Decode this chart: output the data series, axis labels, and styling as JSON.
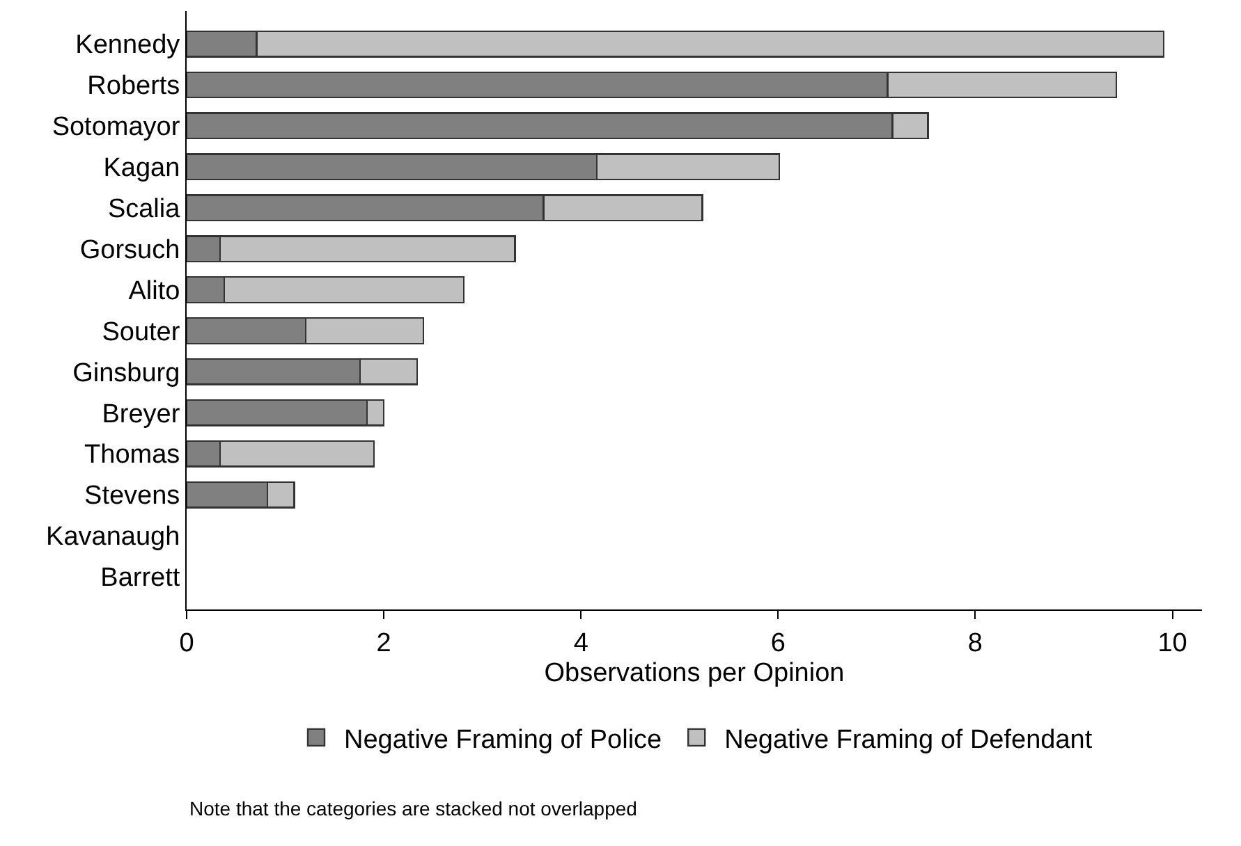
{
  "chart_data": {
    "type": "bar",
    "orientation": "horizontal",
    "stacked": true,
    "categories": [
      "Kennedy",
      "Roberts",
      "Sotomayor",
      "Kagan",
      "Scalia",
      "Gorsuch",
      "Alito",
      "Souter",
      "Ginsburg",
      "Breyer",
      "Thomas",
      "Stevens",
      "Kavanaugh",
      "Barrett"
    ],
    "series": [
      {
        "name": "Negative Framing of Police",
        "color": "#808080",
        "values": [
          0.71,
          7.11,
          7.16,
          4.16,
          3.62,
          0.34,
          0.38,
          1.21,
          1.76,
          1.83,
          0.34,
          0.82,
          null,
          null
        ]
      },
      {
        "name": "Negative Framing of Defendant",
        "color": "#c0c0c0",
        "values": [
          9.2,
          2.32,
          0.36,
          1.85,
          1.61,
          2.99,
          2.43,
          1.19,
          0.58,
          0.17,
          1.56,
          0.27,
          null,
          null
        ]
      }
    ],
    "xlabel": "Observations per Opinion",
    "xlim": [
      0,
      10.3
    ],
    "xticks": [
      0,
      2,
      4,
      6,
      8,
      10
    ],
    "legend": "bottom",
    "annotations": [
      "Note that the categories are stacked not overlapped"
    ]
  }
}
